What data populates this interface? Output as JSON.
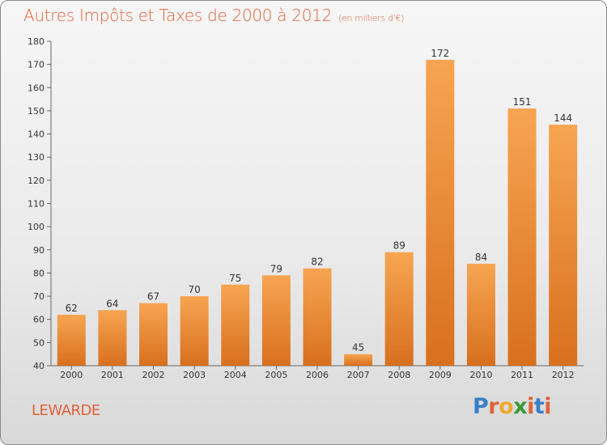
{
  "header": {
    "title": "Autres Impôts et Taxes de 2000 à 2012",
    "unit": "(en milliers d'€)"
  },
  "footer": {
    "commune": "LEWARDE",
    "brand": "Proxiti",
    "brand_colors": [
      "#3a7fc8",
      "#e0623a",
      "#f0a830",
      "#3a9a3a",
      "#e0623a",
      "#3a7fc8",
      "#e0623a"
    ]
  },
  "colors": {
    "bar_light": "#f7a552",
    "bar_dark": "#d8701e",
    "title": "#e0623a"
  },
  "chart_data": {
    "type": "bar",
    "categories": [
      "2000",
      "2001",
      "2002",
      "2003",
      "2004",
      "2005",
      "2006",
      "2007",
      "2008",
      "2009",
      "2010",
      "2011",
      "2012"
    ],
    "values": [
      62,
      64,
      67,
      70,
      75,
      79,
      82,
      45,
      89,
      172,
      84,
      151,
      144
    ],
    "title": "Autres Impôts et Taxes de 2000 à 2012",
    "ylim": [
      40,
      180
    ],
    "yticks": [
      40,
      50,
      60,
      70,
      80,
      90,
      100,
      110,
      120,
      130,
      140,
      150,
      160,
      170,
      180
    ],
    "grid": false,
    "data_labels": true
  }
}
